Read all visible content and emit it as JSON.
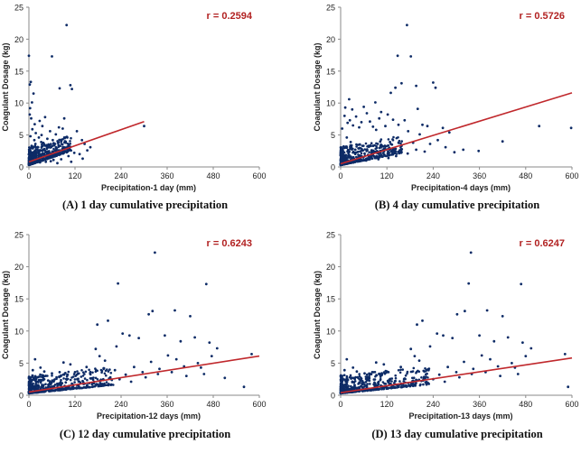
{
  "chart_data": [
    {
      "type": "scatter",
      "panel": "A",
      "caption": "(A) 1 day cumulative precipitation",
      "xlabel": "Precipitation-1 day (mm)",
      "ylabel": "Coagulant Dosage (kg)",
      "xlim": [
        0,
        600
      ],
      "ylim": [
        0,
        25
      ],
      "xticks": [
        0,
        120,
        240,
        360,
        480,
        600
      ],
      "yticks": [
        0,
        5,
        10,
        15,
        20,
        25
      ],
      "annotation": "r = 0.2594",
      "trendline": {
        "x": [
          0,
          300
        ],
        "y": [
          0.8,
          7.1
        ]
      },
      "points": [
        [
          0,
          17.4
        ],
        [
          5,
          13.3
        ],
        [
          2,
          12.9
        ],
        [
          12,
          11.5
        ],
        [
          8,
          10.1
        ],
        [
          3,
          9.2
        ],
        [
          60,
          17.3
        ],
        [
          98,
          22.2
        ],
        [
          80,
          12.3
        ],
        [
          108,
          12.8
        ],
        [
          112,
          12.2
        ],
        [
          28,
          7.2
        ],
        [
          42,
          7.8
        ],
        [
          35,
          6.4
        ],
        [
          2,
          8.2
        ],
        [
          6,
          7.6
        ],
        [
          15,
          6.7
        ],
        [
          55,
          5.6
        ],
        [
          62,
          4.2
        ],
        [
          70,
          5.1
        ],
        [
          78,
          6.2
        ],
        [
          88,
          6.0
        ],
        [
          92,
          7.6
        ],
        [
          96,
          3.8
        ],
        [
          100,
          4.6
        ],
        [
          125,
          5.6
        ],
        [
          138,
          4.2
        ],
        [
          145,
          3.6
        ],
        [
          152,
          2.6
        ],
        [
          160,
          3.1
        ],
        [
          103,
          1.7
        ],
        [
          118,
          2.2
        ],
        [
          132,
          2.0
        ],
        [
          140,
          1.3
        ],
        [
          110,
          0.8
        ],
        [
          300,
          6.4
        ],
        [
          20,
          2.1
        ],
        [
          24,
          3.1
        ],
        [
          31,
          2.6
        ],
        [
          38,
          1.5
        ],
        [
          46,
          3.4
        ],
        [
          52,
          2.3
        ],
        [
          66,
          1.8
        ],
        [
          72,
          2.9
        ],
        [
          84,
          1.2
        ],
        [
          90,
          2.4
        ],
        [
          4,
          4.8
        ],
        [
          9,
          5.9
        ],
        [
          14,
          4.2
        ],
        [
          18,
          5.3
        ],
        [
          26,
          4.6
        ],
        [
          33,
          5.0
        ],
        [
          11,
          1.6
        ],
        [
          16,
          0.9
        ],
        [
          21,
          1.2
        ],
        [
          29,
          0.7
        ],
        [
          36,
          1.0
        ],
        [
          44,
          0.8
        ],
        [
          49,
          1.4
        ],
        [
          57,
          0.9
        ],
        [
          64,
          1.1
        ],
        [
          74,
          0.6
        ],
        [
          3,
          2.6
        ],
        [
          7,
          3.3
        ],
        [
          10,
          2.9
        ],
        [
          13,
          2.2
        ],
        [
          17,
          3.6
        ],
        [
          22,
          2.7
        ],
        [
          27,
          1.9
        ],
        [
          32,
          3.9
        ],
        [
          40,
          2.8
        ],
        [
          48,
          4.4
        ],
        [
          58,
          3.1
        ],
        [
          68,
          3.6
        ]
      ]
    },
    {
      "type": "scatter",
      "panel": "B",
      "caption": "(B) 4 day cumulative precipitation",
      "xlabel": "Precipitation-4 days (mm)",
      "ylabel": "Coagulant Dosage (kg)",
      "xlim": [
        0,
        600
      ],
      "ylim": [
        0,
        25
      ],
      "xticks": [
        0,
        120,
        240,
        360,
        480,
        600
      ],
      "yticks": [
        0,
        5,
        10,
        15,
        20,
        25
      ],
      "annotation": "r = 0.5726",
      "trendline": {
        "x": [
          0,
          600
        ],
        "y": [
          0.5,
          11.6
        ]
      },
      "points": [
        [
          22,
          10.6
        ],
        [
          12,
          9.3
        ],
        [
          30,
          9.0
        ],
        [
          60,
          9.4
        ],
        [
          90,
          10.1
        ],
        [
          105,
          8.6
        ],
        [
          148,
          17.4
        ],
        [
          172,
          22.2
        ],
        [
          182,
          17.3
        ],
        [
          130,
          11.6
        ],
        [
          142,
          12.4
        ],
        [
          196,
          12.7
        ],
        [
          200,
          9.1
        ],
        [
          158,
          13.1
        ],
        [
          240,
          13.2
        ],
        [
          246,
          12.4
        ],
        [
          265,
          6.1
        ],
        [
          252,
          4.2
        ],
        [
          225,
          6.4
        ],
        [
          212,
          6.6
        ],
        [
          205,
          5.1
        ],
        [
          188,
          3.8
        ],
        [
          175,
          5.6
        ],
        [
          166,
          7.3
        ],
        [
          150,
          6.6
        ],
        [
          136,
          7.4
        ],
        [
          122,
          8.2
        ],
        [
          116,
          6.4
        ],
        [
          100,
          7.6
        ],
        [
          92,
          5.8
        ],
        [
          84,
          6.3
        ],
        [
          76,
          7.1
        ],
        [
          68,
          8.4
        ],
        [
          54,
          7.0
        ],
        [
          48,
          6.2
        ],
        [
          40,
          7.9
        ],
        [
          32,
          6.5
        ],
        [
          24,
          7.3
        ],
        [
          18,
          6.9
        ],
        [
          10,
          8.0
        ],
        [
          4,
          6.0
        ],
        [
          295,
          2.3
        ],
        [
          318,
          2.7
        ],
        [
          358,
          2.5
        ],
        [
          420,
          4.0
        ],
        [
          515,
          6.4
        ],
        [
          598,
          6.1
        ],
        [
          282,
          5.4
        ],
        [
          272,
          3.1
        ],
        [
          232,
          3.6
        ],
        [
          218,
          2.4
        ],
        [
          196,
          2.7
        ],
        [
          174,
          2.1
        ],
        [
          158,
          3.3
        ],
        [
          140,
          2.6
        ],
        [
          128,
          3.9
        ],
        [
          112,
          2.8
        ],
        [
          96,
          3.6
        ],
        [
          86,
          2.4
        ],
        [
          72,
          3.3
        ],
        [
          62,
          2.1
        ],
        [
          50,
          3.5
        ],
        [
          38,
          2.7
        ],
        [
          26,
          3.9
        ],
        [
          16,
          4.6
        ],
        [
          8,
          3.2
        ],
        [
          2,
          2.4
        ],
        [
          114,
          1.8
        ],
        [
          98,
          1.2
        ],
        [
          80,
          1.6
        ],
        [
          66,
          1.0
        ],
        [
          46,
          1.5
        ],
        [
          30,
          0.8
        ],
        [
          14,
          1.2
        ],
        [
          124,
          1.4
        ],
        [
          144,
          1.7
        ]
      ]
    },
    {
      "type": "scatter",
      "panel": "C",
      "caption": "(C) 12 day cumulative precipitation",
      "xlabel": "Precipitation-12 days (mm)",
      "ylabel": "Coagulant Dosage (kg)",
      "xlim": [
        0,
        600
      ],
      "ylim": [
        0,
        25
      ],
      "xticks": [
        0,
        120,
        240,
        360,
        480,
        600
      ],
      "yticks": [
        0,
        5,
        10,
        15,
        20,
        25
      ],
      "annotation": "r = 0.6243",
      "trendline": {
        "x": [
          0,
          600
        ],
        "y": [
          0.5,
          6.1
        ]
      },
      "points": [
        [
          328,
          22.2
        ],
        [
          232,
          17.4
        ],
        [
          462,
          17.3
        ],
        [
          322,
          13.1
        ],
        [
          380,
          13.2
        ],
        [
          420,
          12.3
        ],
        [
          312,
          12.6
        ],
        [
          244,
          9.6
        ],
        [
          262,
          9.3
        ],
        [
          286,
          8.9
        ],
        [
          354,
          9.3
        ],
        [
          395,
          8.4
        ],
        [
          432,
          9.0
        ],
        [
          470,
          8.2
        ],
        [
          476,
          6.1
        ],
        [
          490,
          7.3
        ],
        [
          510,
          2.7
        ],
        [
          560,
          1.3
        ],
        [
          580,
          6.4
        ],
        [
          178,
          11.0
        ],
        [
          206,
          11.6
        ],
        [
          174,
          7.2
        ],
        [
          228,
          7.6
        ],
        [
          184,
          6.1
        ],
        [
          198,
          5.4
        ],
        [
          150,
          4.4
        ],
        [
          120,
          3.6
        ],
        [
          108,
          4.8
        ],
        [
          100,
          3.2
        ],
        [
          90,
          5.1
        ],
        [
          80,
          3.6
        ],
        [
          72,
          2.8
        ],
        [
          60,
          3.4
        ],
        [
          50,
          2.3
        ],
        [
          40,
          3.7
        ],
        [
          30,
          4.3
        ],
        [
          22,
          2.8
        ],
        [
          16,
          5.6
        ],
        [
          10,
          3.9
        ],
        [
          4,
          2.1
        ],
        [
          252,
          3.2
        ],
        [
          274,
          4.4
        ],
        [
          296,
          3.6
        ],
        [
          318,
          5.2
        ],
        [
          340,
          4.1
        ],
        [
          362,
          6.2
        ],
        [
          384,
          5.6
        ],
        [
          404,
          4.5
        ],
        [
          440,
          5.0
        ],
        [
          456,
          3.3
        ],
        [
          212,
          2.8
        ],
        [
          224,
          3.9
        ],
        [
          194,
          2.4
        ],
        [
          162,
          2.6
        ],
        [
          140,
          2.2
        ],
        [
          126,
          2.5
        ],
        [
          112,
          1.8
        ],
        [
          96,
          2.0
        ],
        [
          84,
          1.7
        ],
        [
          66,
          1.4
        ],
        [
          54,
          1.9
        ],
        [
          44,
          1.2
        ],
        [
          34,
          1.6
        ],
        [
          24,
          1.0
        ],
        [
          14,
          1.4
        ],
        [
          6,
          0.8
        ],
        [
          186,
          1.9
        ],
        [
          236,
          2.5
        ],
        [
          266,
          2.1
        ],
        [
          304,
          2.8
        ],
        [
          336,
          3.3
        ],
        [
          372,
          3.6
        ],
        [
          410,
          3.0
        ],
        [
          448,
          4.3
        ]
      ]
    },
    {
      "type": "scatter",
      "panel": "D",
      "caption": "(D) 13 day cumulative precipitation",
      "xlabel": "Precipitation-13 days (mm)",
      "ylabel": "Coagulant Dosage (kg)",
      "xlim": [
        0,
        600
      ],
      "ylim": [
        0,
        25
      ],
      "xticks": [
        0,
        120,
        240,
        360,
        480,
        600
      ],
      "yticks": [
        0,
        5,
        10,
        15,
        20,
        25
      ],
      "annotation": "r = 0.6247",
      "trendline": {
        "x": [
          0,
          600
        ],
        "y": [
          0.4,
          5.8
        ]
      },
      "points": [
        [
          338,
          22.2
        ],
        [
          332,
          17.4
        ],
        [
          468,
          17.3
        ],
        [
          322,
          13.1
        ],
        [
          380,
          13.2
        ],
        [
          420,
          12.3
        ],
        [
          302,
          12.6
        ],
        [
          250,
          9.6
        ],
        [
          266,
          9.3
        ],
        [
          290,
          8.9
        ],
        [
          360,
          9.3
        ],
        [
          398,
          8.4
        ],
        [
          434,
          9.0
        ],
        [
          472,
          8.2
        ],
        [
          480,
          6.1
        ],
        [
          494,
          7.3
        ],
        [
          590,
          1.3
        ],
        [
          582,
          6.4
        ],
        [
          198,
          11.0
        ],
        [
          212,
          11.6
        ],
        [
          182,
          7.2
        ],
        [
          232,
          7.6
        ],
        [
          192,
          6.1
        ],
        [
          204,
          5.4
        ],
        [
          156,
          4.4
        ],
        [
          124,
          3.6
        ],
        [
          112,
          4.8
        ],
        [
          102,
          3.2
        ],
        [
          92,
          5.1
        ],
        [
          82,
          3.6
        ],
        [
          74,
          2.8
        ],
        [
          62,
          3.4
        ],
        [
          52,
          2.3
        ],
        [
          42,
          3.7
        ],
        [
          32,
          4.3
        ],
        [
          24,
          2.8
        ],
        [
          16,
          5.6
        ],
        [
          10,
          3.9
        ],
        [
          4,
          2.1
        ],
        [
          256,
          3.2
        ],
        [
          278,
          4.4
        ],
        [
          300,
          3.6
        ],
        [
          320,
          5.2
        ],
        [
          344,
          4.1
        ],
        [
          366,
          6.2
        ],
        [
          388,
          5.6
        ],
        [
          408,
          4.5
        ],
        [
          444,
          5.0
        ],
        [
          460,
          3.3
        ],
        [
          216,
          2.8
        ],
        [
          228,
          3.9
        ],
        [
          196,
          2.4
        ],
        [
          166,
          2.6
        ],
        [
          142,
          2.2
        ],
        [
          128,
          2.5
        ],
        [
          114,
          1.8
        ],
        [
          98,
          2.0
        ],
        [
          86,
          1.7
        ],
        [
          68,
          1.4
        ],
        [
          56,
          1.9
        ],
        [
          46,
          1.2
        ],
        [
          36,
          1.6
        ],
        [
          26,
          1.0
        ],
        [
          14,
          1.4
        ],
        [
          6,
          0.8
        ],
        [
          188,
          1.9
        ],
        [
          240,
          2.5
        ],
        [
          270,
          2.1
        ],
        [
          308,
          2.8
        ],
        [
          340,
          3.3
        ],
        [
          376,
          3.6
        ],
        [
          414,
          3.0
        ],
        [
          452,
          4.3
        ]
      ]
    }
  ]
}
